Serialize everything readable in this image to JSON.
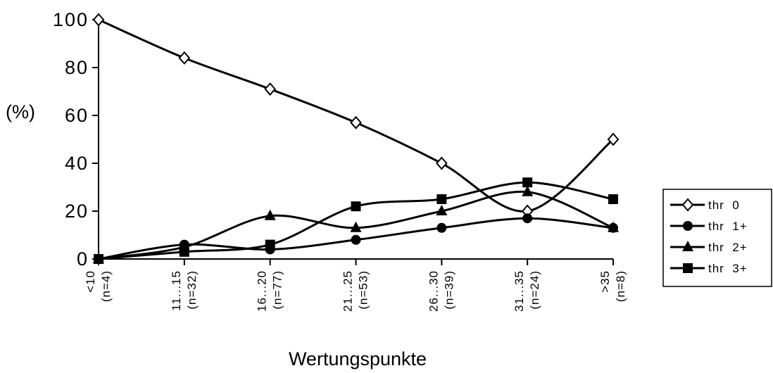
{
  "chart_data": {
    "type": "line",
    "ylabel": "(%)",
    "xlabel": "Wertungspunkte",
    "ylim": [
      0,
      100
    ],
    "yticks": [
      0,
      20,
      40,
      60,
      80,
      100
    ],
    "categories": [
      {
        "label": "<10",
        "n": "(n=4)"
      },
      {
        "label": "11...15",
        "n": "(n=32)"
      },
      {
        "label": "16...20",
        "n": "(n=77)"
      },
      {
        "label": "21...25",
        "n": "(n=53)"
      },
      {
        "label": "26...30",
        "n": "(n=39)"
      },
      {
        "label": "31...35",
        "n": "(n=24)"
      },
      {
        "label": ">35",
        "n": "(n=8)"
      }
    ],
    "series": [
      {
        "name": "thr  0",
        "marker": "diamond-open",
        "values": [
          100,
          84,
          71,
          57,
          40,
          20,
          50
        ]
      },
      {
        "name": "thr  1+",
        "marker": "circle",
        "values": [
          0,
          6,
          4,
          8,
          13,
          17,
          13
        ]
      },
      {
        "name": "thr  2+",
        "marker": "triangle",
        "values": [
          0,
          5,
          18,
          13,
          20,
          28,
          13
        ]
      },
      {
        "name": "thr  3+",
        "marker": "square",
        "values": [
          0,
          3,
          6,
          22,
          25,
          32,
          25
        ]
      }
    ],
    "grid": false,
    "legend": "right"
  }
}
